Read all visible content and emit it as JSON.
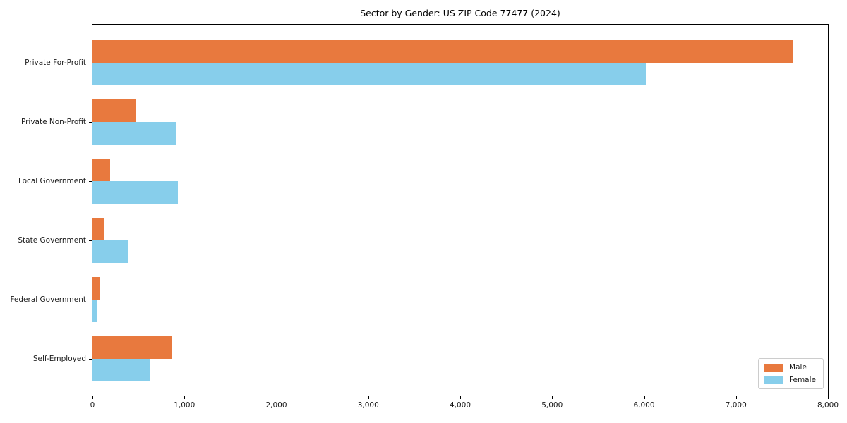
{
  "title": "Sector by Gender: US ZIP Code 77477 (2024)",
  "chart_data": {
    "type": "bar",
    "orientation": "horizontal",
    "title": "Sector by Gender: US ZIP Code 77477 (2024)",
    "xlabel": "",
    "ylabel": "",
    "categories": [
      "Private For-Profit",
      "Private Non-Profit",
      "Local Government",
      "State Government",
      "Federal Government",
      "Self-Employed"
    ],
    "series": [
      {
        "name": "Male",
        "color": "#e8793e",
        "values": [
          7620,
          475,
          190,
          130,
          75,
          860
        ]
      },
      {
        "name": "Female",
        "color": "#87ceeb",
        "values": [
          6020,
          905,
          930,
          385,
          45,
          630
        ]
      }
    ],
    "xlim": [
      0,
      8000
    ],
    "x_ticks": [
      {
        "value": 0,
        "label": "0"
      },
      {
        "value": 1000,
        "label": "1,000"
      },
      {
        "value": 2000,
        "label": "2,000"
      },
      {
        "value": 3000,
        "label": "3,000"
      },
      {
        "value": 4000,
        "label": "4,000"
      },
      {
        "value": 5000,
        "label": "5,000"
      },
      {
        "value": 6000,
        "label": "6,000"
      },
      {
        "value": 7000,
        "label": "7,000"
      },
      {
        "value": 8000,
        "label": "8,000"
      }
    ],
    "grid": false,
    "legend_position": "lower right"
  }
}
